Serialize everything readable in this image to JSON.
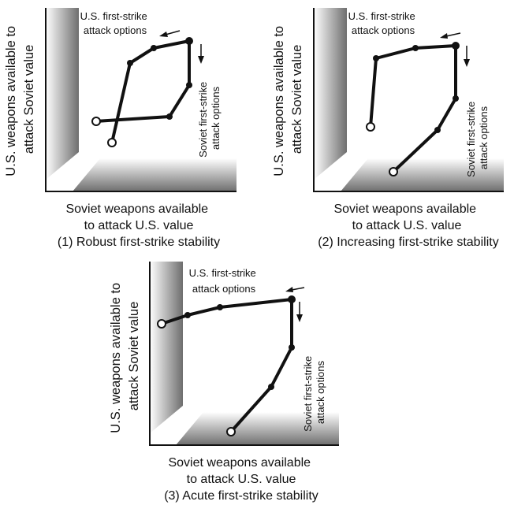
{
  "panels": [
    {
      "caption": "(1) Robust first-strike stability",
      "xlabel_lines": [
        "Soviet weapons available",
        "to attack U.S. value"
      ],
      "ylabel_lines": [
        "U.S. weapons available to",
        "attack Soviet value"
      ],
      "us_options_lines": [
        "U.S. first-strike",
        "attack options"
      ],
      "soviet_options_lines": [
        "Soviet first-strike",
        "attack options"
      ]
    },
    {
      "caption": "(2) Increasing first-strike stability",
      "xlabel_lines": [
        "Soviet weapons available",
        "to attack U.S. value"
      ],
      "ylabel_lines": [
        "U.S. weapons available to",
        "attack Soviet value"
      ],
      "us_options_lines": [
        "U.S. first-strike",
        "attack options"
      ],
      "soviet_options_lines": [
        "Soviet first-strike",
        "attack options"
      ]
    },
    {
      "caption": "(3) Acute first-strike stability",
      "xlabel_lines": [
        "Soviet weapons available",
        "to attack U.S. value"
      ],
      "ylabel_lines": [
        "U.S. weapons available to",
        "attack Soviet value"
      ],
      "us_options_lines": [
        "U.S. first-strike",
        "attack options"
      ],
      "soviet_options_lines": [
        "Soviet first-strike",
        "attack options"
      ]
    }
  ]
}
